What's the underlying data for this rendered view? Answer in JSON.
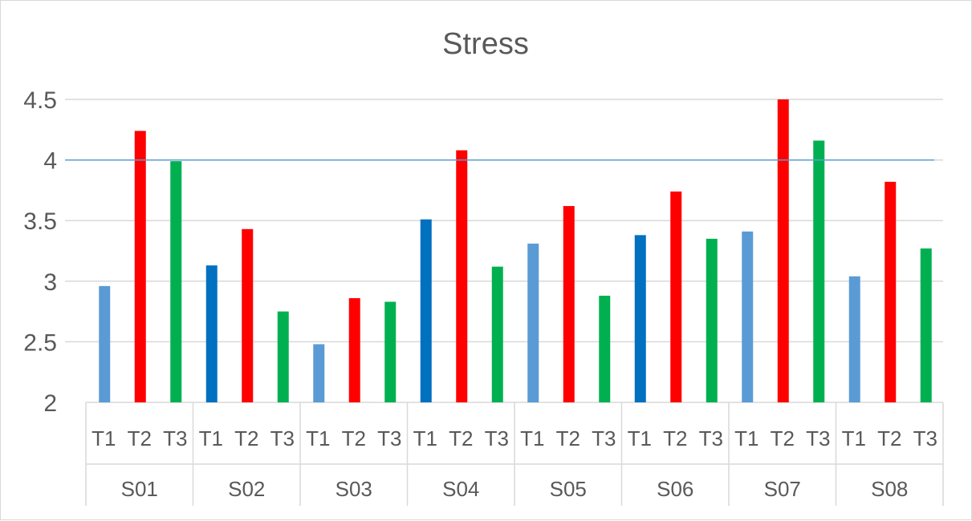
{
  "chart_data": {
    "type": "bar",
    "title": "Stress",
    "ylim": [
      2,
      4.5
    ],
    "y_ticks": [
      "2",
      "2.5",
      "3",
      "3.5",
      "4",
      "4.5"
    ],
    "grid": true,
    "reference_line": {
      "value": 4,
      "color": "#5b9bd5"
    },
    "groups": [
      "S01",
      "S02",
      "S03",
      "S04",
      "S05",
      "S06",
      "S07",
      "S08"
    ],
    "subcategories": [
      "T1",
      "T2",
      "T3"
    ],
    "colors": {
      "T1_light": "#5b9bd5",
      "T1_dark": "#0070c0",
      "T2": "#ff0000",
      "T3": "#00b050",
      "grid": "#d9d9d9",
      "text": "#595959"
    },
    "values": [
      [
        2.96,
        4.24,
        3.99
      ],
      [
        3.13,
        3.43,
        2.75
      ],
      [
        2.48,
        2.86,
        2.83
      ],
      [
        3.51,
        4.08,
        3.12
      ],
      [
        3.31,
        3.62,
        2.88
      ],
      [
        3.38,
        3.74,
        3.35
      ],
      [
        3.41,
        4.5,
        4.16
      ],
      [
        3.04,
        3.82,
        3.27
      ]
    ],
    "t1_dark_groups": [
      "S02",
      "S04",
      "S06"
    ]
  }
}
